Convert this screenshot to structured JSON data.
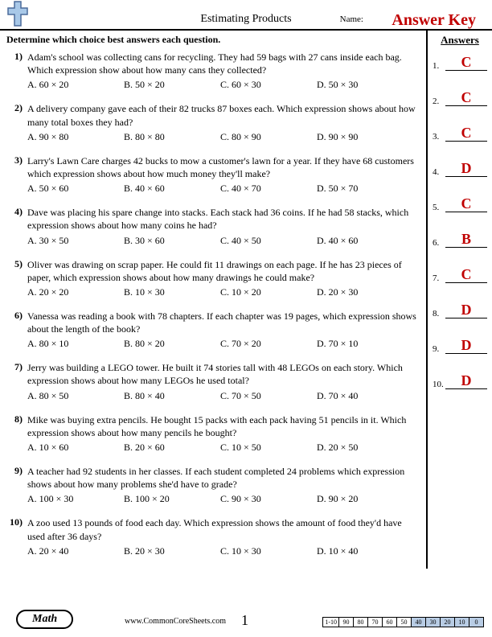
{
  "header": {
    "title": "Estimating Products",
    "name_label": "Name:",
    "answer_key": "Answer Key"
  },
  "instructions": "Determine which choice best answers each question.",
  "questions": [
    {
      "num": "1)",
      "text": "Adam's school was collecting cans for recycling. They had 59 bags with 27 cans inside each bag. Which expression show about how many cans they collected?",
      "choices": [
        "A.   60 × 20",
        "B.   50 × 20",
        "C.   60 × 30",
        "D.   50 × 30"
      ]
    },
    {
      "num": "2)",
      "text": "A delivery company gave each of their 82 trucks 87 boxes each. Which expression shows about how many total boxes they had?",
      "choices": [
        "A.   90 × 80",
        "B.   80 × 80",
        "C.   80 × 90",
        "D.   90 × 90"
      ]
    },
    {
      "num": "3)",
      "text": "Larry's Lawn Care charges 42 bucks to mow a customer's lawn for a year. If they have 68 customers which expression shows about how much money they'll make?",
      "choices": [
        "A.   50 × 60",
        "B.   40 × 60",
        "C.   40 × 70",
        "D.   50 × 70"
      ]
    },
    {
      "num": "4)",
      "text": "Dave was placing his spare change into stacks. Each stack had 36 coins. If he had 58 stacks, which expression shows about how many coins he had?",
      "choices": [
        "A.   30 × 50",
        "B.   30 × 60",
        "C.   40 × 50",
        "D.   40 × 60"
      ]
    },
    {
      "num": "5)",
      "text": "Oliver was drawing on scrap paper. He could fit 11 drawings on each page. If he has 23 pieces of paper, which expression shows about how many drawings he could make?",
      "choices": [
        "A.   20 × 20",
        "B.   10 × 30",
        "C.   10 × 20",
        "D.   20 × 30"
      ]
    },
    {
      "num": "6)",
      "text": "Vanessa was reading a book with 78 chapters. If each chapter was 19 pages, which expression shows about the length of the book?",
      "choices": [
        "A.   80 × 10",
        "B.   80 × 20",
        "C.   70 × 20",
        "D.   70 × 10"
      ]
    },
    {
      "num": "7)",
      "text": "Jerry was building a LEGO tower. He built it 74 stories tall with 48 LEGOs on each story. Which expression shows about how many LEGOs he used total?",
      "choices": [
        "A.   80 × 50",
        "B.   80 × 40",
        "C.   70 × 50",
        "D.   70 × 40"
      ]
    },
    {
      "num": "8)",
      "text": "Mike was buying extra pencils. He bought 15 packs with each pack having 51 pencils in it. Which expression shows about how many pencils he bought?",
      "choices": [
        "A.   10 × 60",
        "B.   20 × 60",
        "C.   10 × 50",
        "D.   20 × 50"
      ]
    },
    {
      "num": "9)",
      "text": "A teacher had 92 students in her classes. If each student completed 24 problems which expression shows about how many problems she'd have to grade?",
      "choices": [
        "A.   100 × 30",
        "B.   100 × 20",
        "C.   90 × 30",
        "D.   90 × 20"
      ]
    },
    {
      "num": "10)",
      "text": "A zoo used 13 pounds of food each day. Which expression shows the amount of food they'd have used after 36 days?",
      "choices": [
        "A.   20 × 40",
        "B.   20 × 30",
        "C.   10 × 30",
        "D.   10 × 40"
      ]
    }
  ],
  "answers": {
    "header": "Answers",
    "items": [
      {
        "num": "1.",
        "val": "C"
      },
      {
        "num": "2.",
        "val": "C"
      },
      {
        "num": "3.",
        "val": "C"
      },
      {
        "num": "4.",
        "val": "D"
      },
      {
        "num": "5.",
        "val": "C"
      },
      {
        "num": "6.",
        "val": "B"
      },
      {
        "num": "7.",
        "val": "C"
      },
      {
        "num": "8.",
        "val": "D"
      },
      {
        "num": "9.",
        "val": "D"
      },
      {
        "num": "10.",
        "val": "D"
      }
    ]
  },
  "footer": {
    "badge": "Math",
    "url": "www.CommonCoreSheets.com",
    "page": "1",
    "score_label": "1-10",
    "scores": [
      "90",
      "80",
      "70",
      "60",
      "50",
      "40",
      "30",
      "20",
      "10",
      "0"
    ],
    "shaded_from": 5
  },
  "colors": {
    "accent_red": "#c00000",
    "shade_blue": "#b8cce4"
  }
}
